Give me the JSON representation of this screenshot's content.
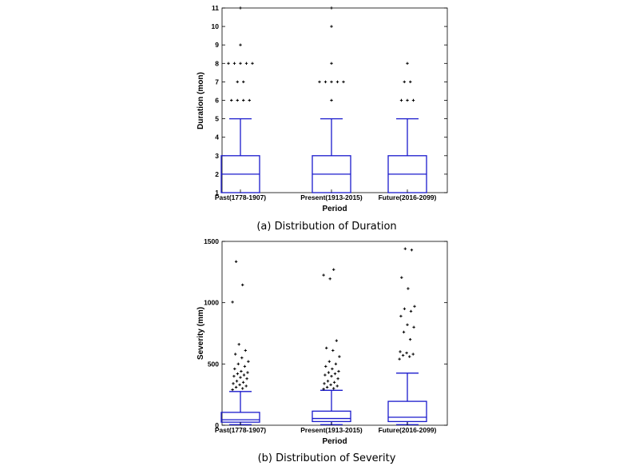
{
  "chart_data": [
    {
      "type": "box",
      "caption": "(a) Distribution of Duration",
      "xlabel": "Period",
      "ylabel": "Duration (mon)",
      "ylim": [
        1,
        11
      ],
      "yticks": [
        1,
        2,
        3,
        4,
        5,
        6,
        7,
        8,
        9,
        10,
        11
      ],
      "categories": [
        "Past(1778-1907)",
        "Present(1913-2015)",
        "Future(2016-2099)"
      ],
      "boxes": [
        {
          "whisker_low": 1,
          "q1": 1,
          "median": 2,
          "q3": 3,
          "whisker_high": 5,
          "outliers": [
            6,
            6,
            6,
            6,
            7,
            7,
            8,
            8,
            8,
            8,
            8,
            9,
            11
          ]
        },
        {
          "whisker_low": 1,
          "q1": 1,
          "median": 2,
          "q3": 3,
          "whisker_high": 5,
          "outliers": [
            6,
            7,
            7,
            7,
            7,
            7,
            8,
            10,
            11
          ]
        },
        {
          "whisker_low": 1,
          "q1": 1,
          "median": 2,
          "q3": 3,
          "whisker_high": 5,
          "outliers": [
            6,
            6,
            6,
            7,
            7,
            8
          ]
        }
      ]
    },
    {
      "type": "box",
      "caption": "(b) Distribution of Severity",
      "xlabel": "Period",
      "ylabel": "Severity (mm)",
      "ylim": [
        0,
        1500
      ],
      "yticks": [
        0,
        500,
        1000,
        1500
      ],
      "categories": [
        "Past(1778-1907)",
        "Present(1913-2015)",
        "Future(2016-2099)"
      ],
      "boxes": [
        {
          "whisker_low": 5,
          "q1": 25,
          "median": 45,
          "q3": 105,
          "whisker_high": 275,
          "outliers": [
            290,
            300,
            310,
            320,
            330,
            340,
            350,
            360,
            380,
            390,
            400,
            410,
            420,
            430,
            440,
            460,
            480,
            500,
            520,
            550,
            580,
            610,
            660,
            1005,
            1145,
            1335
          ]
        },
        {
          "whisker_low": 5,
          "q1": 30,
          "median": 55,
          "q3": 115,
          "whisker_high": 285,
          "outliers": [
            295,
            300,
            310,
            320,
            330,
            340,
            350,
            360,
            380,
            400,
            410,
            420,
            430,
            440,
            460,
            480,
            500,
            520,
            560,
            610,
            630,
            690,
            1195,
            1225,
            1270
          ]
        },
        {
          "whisker_low": 5,
          "q1": 30,
          "median": 65,
          "q3": 195,
          "whisker_high": 425,
          "outliers": [
            540,
            560,
            570,
            580,
            590,
            600,
            700,
            760,
            800,
            820,
            890,
            930,
            950,
            970,
            1115,
            1205,
            1430,
            1440
          ]
        }
      ]
    }
  ]
}
